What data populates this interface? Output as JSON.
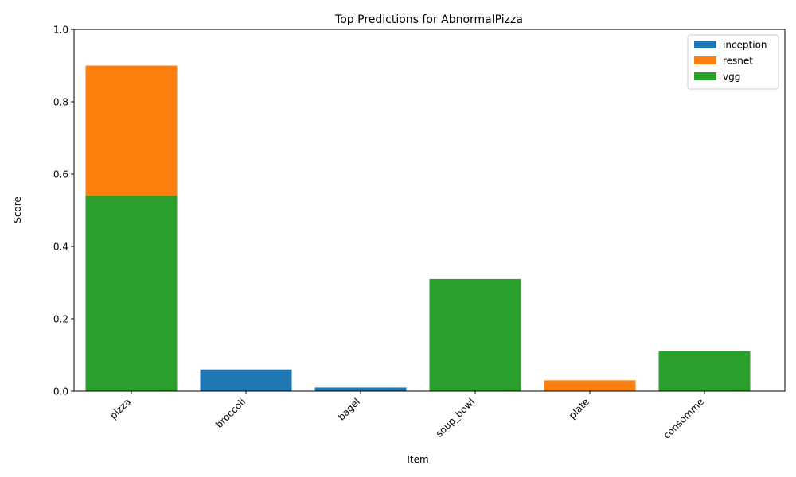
{
  "chart_data": {
    "type": "bar",
    "title": "Top Predictions for AbnormalPizza",
    "xlabel": "Item",
    "ylabel": "Score",
    "ylim": [
      0,
      1.0
    ],
    "yticks": [
      "0.0",
      "0.2",
      "0.4",
      "0.6",
      "0.8",
      "1.0"
    ],
    "categories": [
      "pizza",
      "broccoli",
      "bagel",
      "soup_bowl",
      "plate",
      "consomme"
    ],
    "series": [
      {
        "name": "inception",
        "color": "#1f77b4",
        "values": [
          0,
          0.06,
          0.01,
          0,
          0,
          0
        ]
      },
      {
        "name": "resnet",
        "color": "#ff7f0e",
        "values": [
          0.9,
          0,
          0,
          0,
          0.03,
          0
        ]
      },
      {
        "name": "vgg",
        "color": "#2ca02c",
        "values": [
          0.54,
          0,
          0,
          0.31,
          0,
          0.11
        ]
      }
    ],
    "legend_position": "top-right",
    "grid": false
  }
}
